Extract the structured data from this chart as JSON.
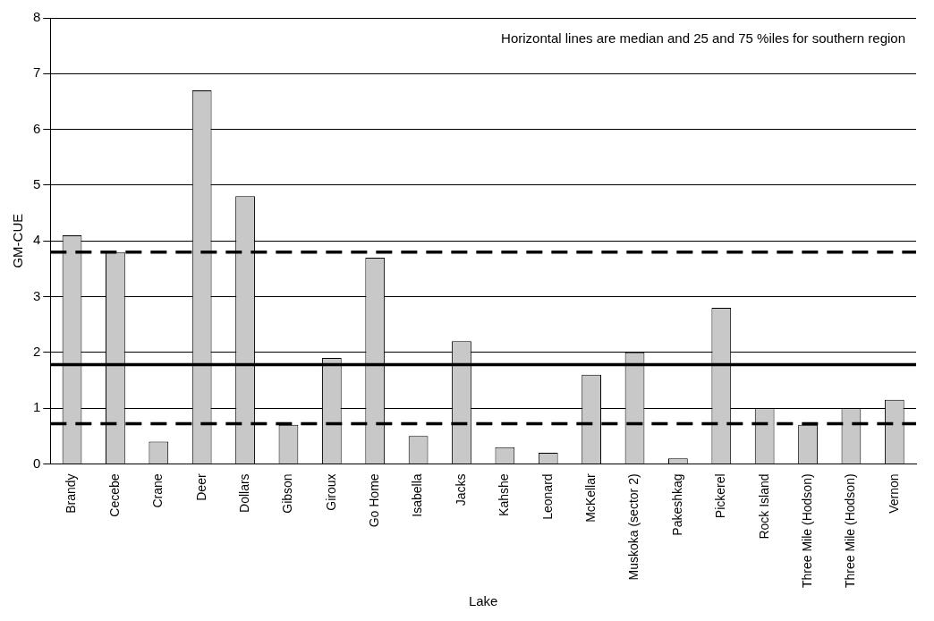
{
  "chart_data": {
    "type": "bar",
    "xlabel": "Lake",
    "ylabel": "GM-CUE",
    "categories": [
      "Brandy",
      "Cecebe",
      "Crane",
      "Deer",
      "Dollars",
      "Gibson",
      "Giroux",
      "Go Home",
      "Isabella",
      "Jacks",
      "Kahshe",
      "Leonard",
      "McKellar",
      "Muskoka (sector 2)",
      "Pakeshkag",
      "Pickerel",
      "Rock Island",
      "Three Mile (Hodson)",
      "Three Mile (Hodson)",
      "Vernon"
    ],
    "values": [
      4.1,
      3.8,
      0.4,
      6.7,
      4.8,
      0.7,
      1.9,
      3.7,
      0.5,
      2.2,
      0.3,
      0.2,
      1.6,
      2.0,
      0.1,
      2.8,
      1.0,
      0.7,
      1.0,
      1.15
    ],
    "color": "#c8c8c8",
    "ylim": [
      0,
      8
    ],
    "yticks": [
      0,
      1,
      2,
      3,
      4,
      5,
      6,
      7,
      8
    ],
    "grid": "y",
    "legend": false,
    "ref_lines": [
      {
        "axis": "y",
        "value": 3.8,
        "color": "#000000",
        "line_style": "dashed"
      },
      {
        "axis": "y",
        "value": 1.78,
        "color": "#000000",
        "line_style": "solid"
      },
      {
        "axis": "y",
        "value": 0.72,
        "color": "#000000",
        "line_style": "dashed"
      }
    ],
    "annotations": [
      "Horizontal lines are median and 25 and 75 %iles for southern region"
    ]
  }
}
